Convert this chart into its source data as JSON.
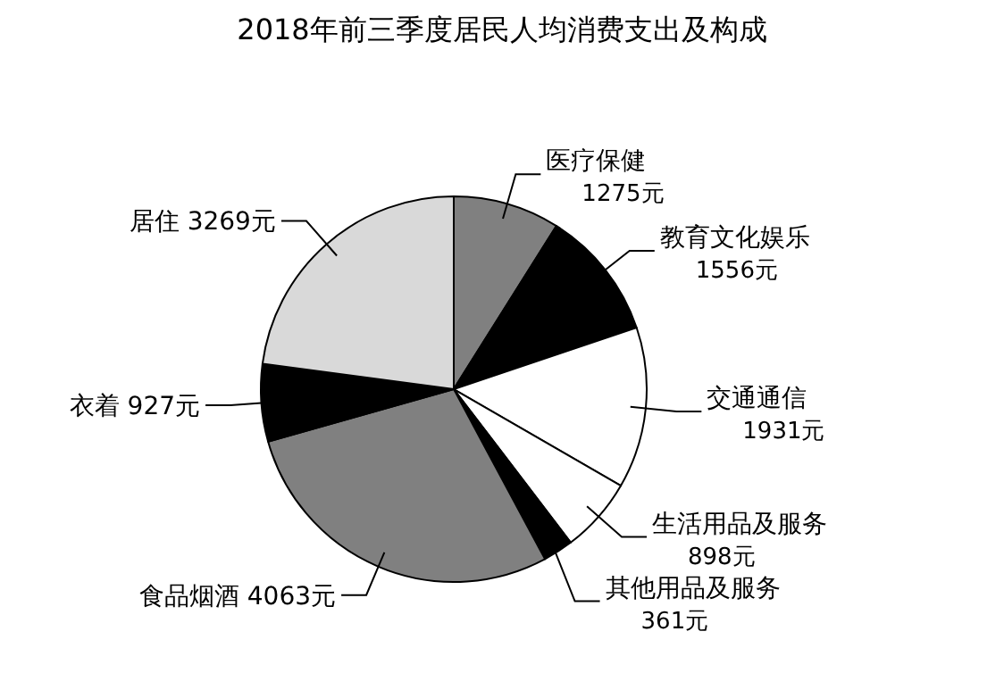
{
  "chart_data": {
    "type": "pie",
    "title": "2018年前三季度居民人均消费支出及构成",
    "categories": [
      "医疗保健",
      "教育文化娱乐",
      "交通通信",
      "生活用品及服务",
      "其他用品及服务",
      "食品烟酒",
      "衣着",
      "居住"
    ],
    "values": [
      1275,
      1556,
      1931,
      898,
      361,
      4063,
      927,
      3269
    ],
    "colors": [
      "#808080",
      "#000000",
      "#ffffff",
      "#ffffff",
      "#000000",
      "#808080",
      "#000000",
      "#d9d9d9"
    ],
    "value_labels": [
      "1275元",
      "1556元",
      "1931元",
      "898元",
      "361元",
      "4063元",
      "927元",
      "3269元"
    ]
  }
}
